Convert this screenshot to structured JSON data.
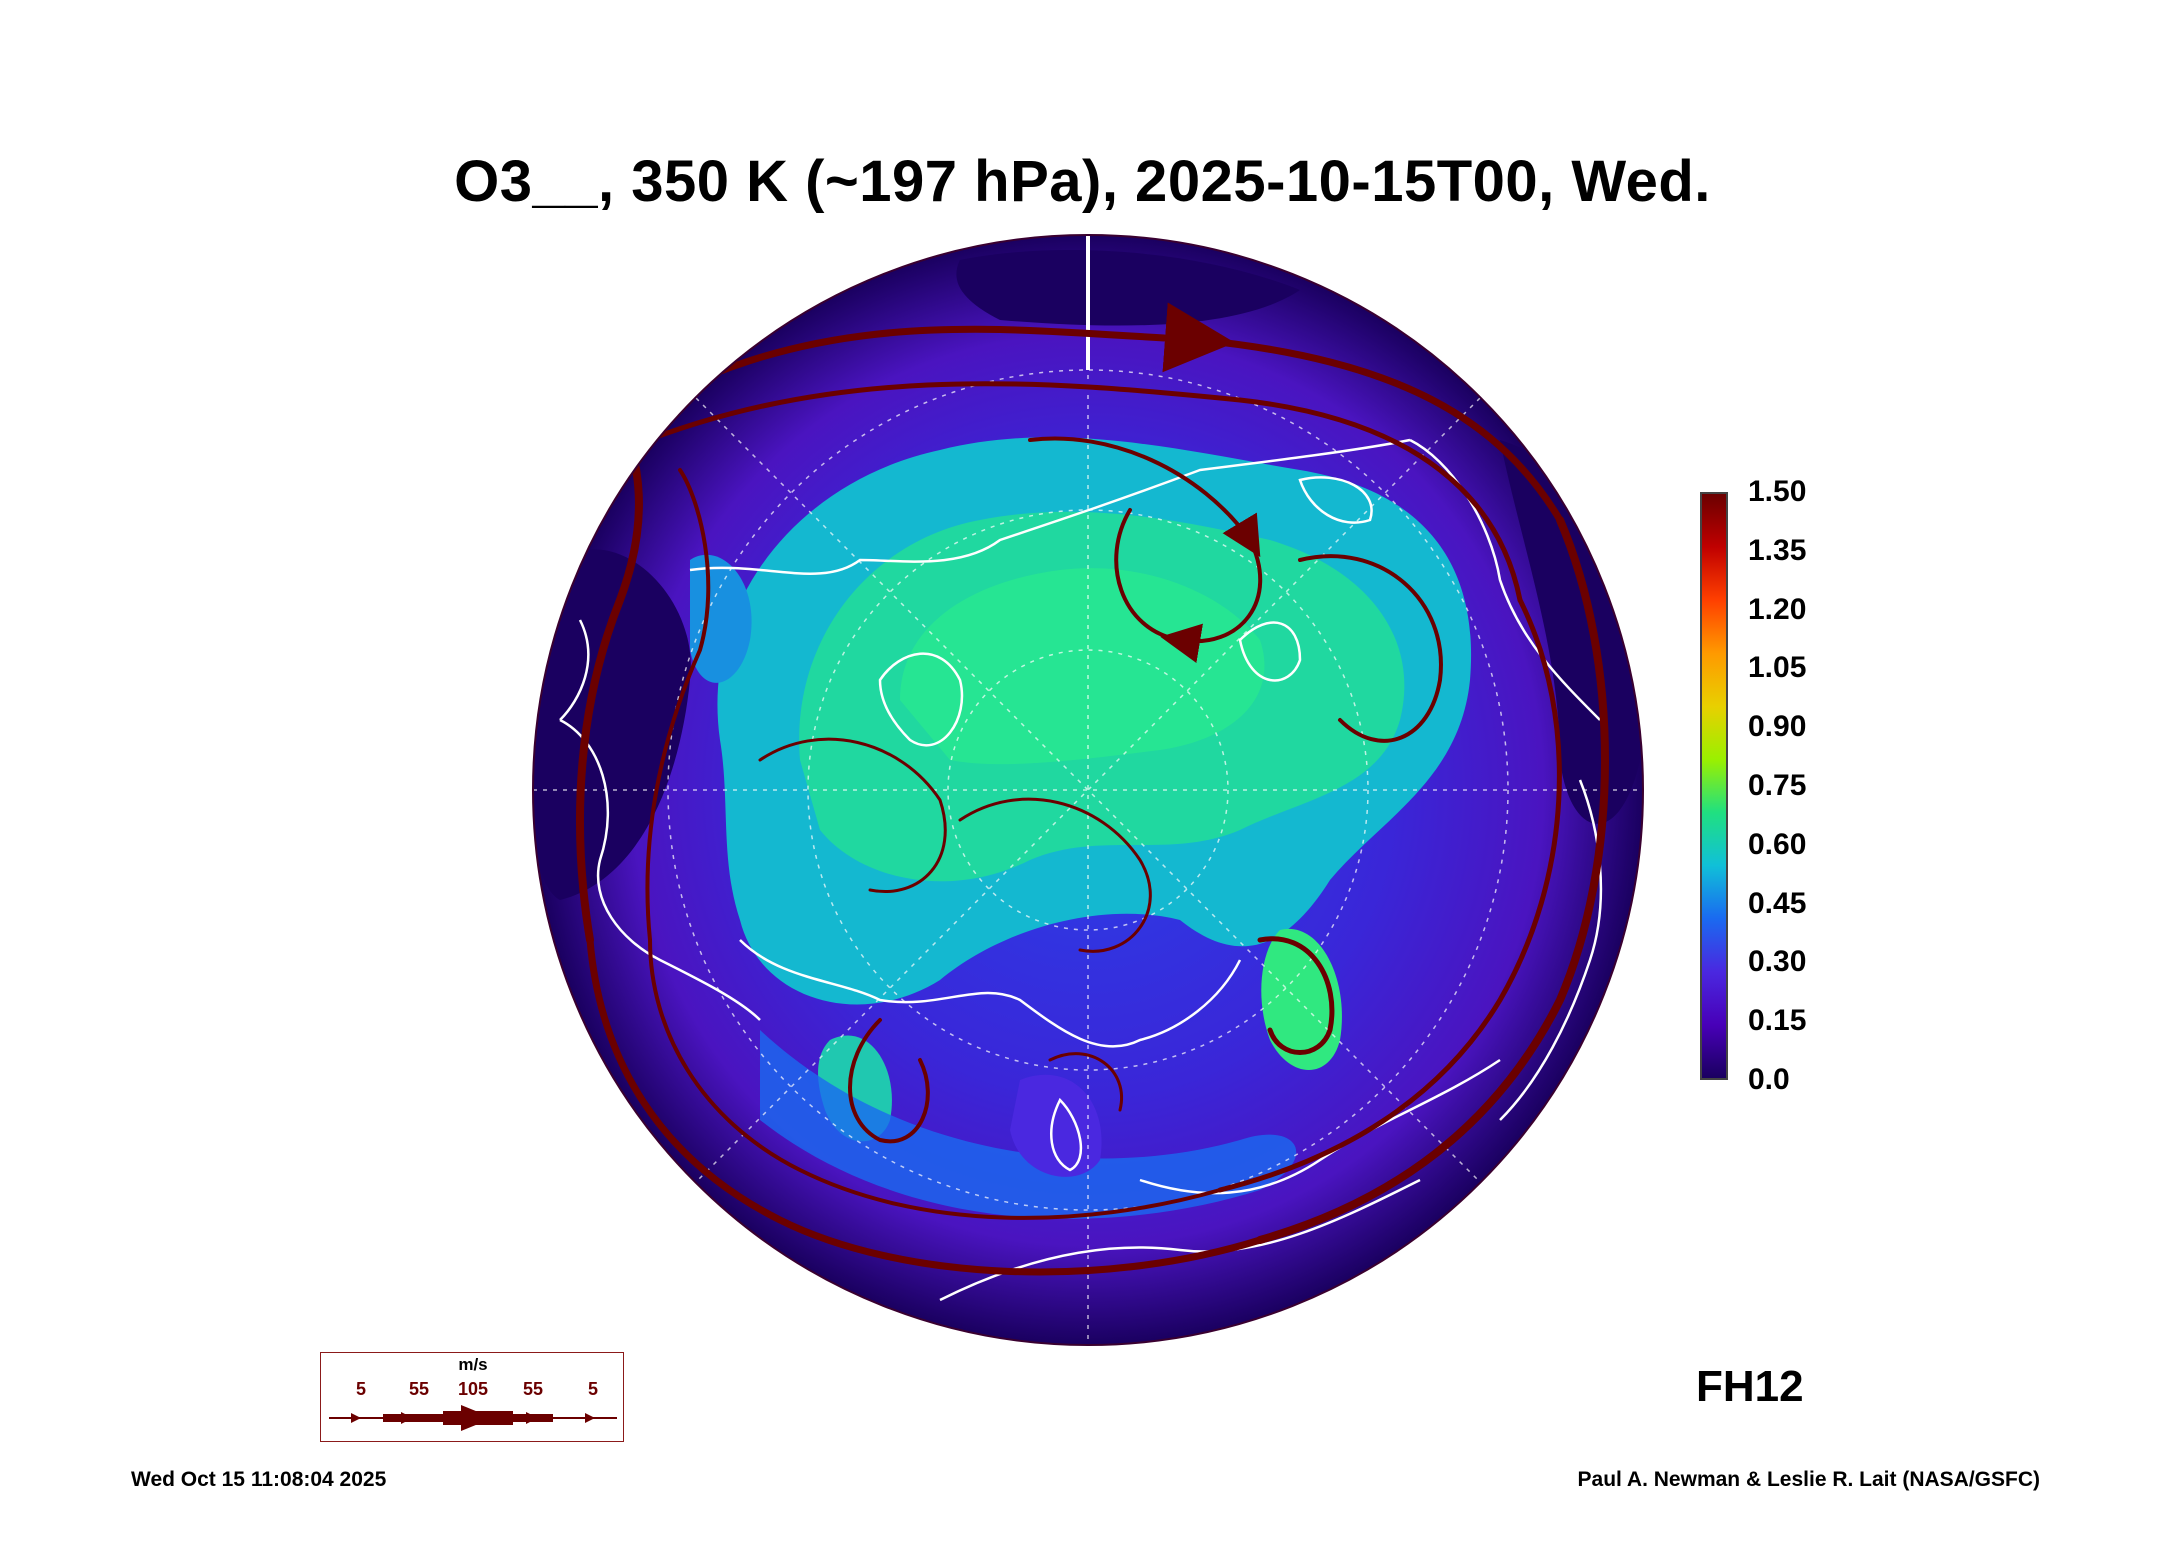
{
  "title": "O3__, 350 K (~197 hPa), 2025-10-15T00, Wed.",
  "forecast_hour": "FH12",
  "colorbar": {
    "labels": [
      "1.50",
      "1.35",
      "1.20",
      "1.05",
      "0.90",
      "0.75",
      "0.60",
      "0.45",
      "0.30",
      "0.15",
      "0.0"
    ],
    "colors": [
      "#6b0000",
      "#c00000",
      "#ff4000",
      "#ff9a00",
      "#e8d000",
      "#9af000",
      "#20e080",
      "#10c0d8",
      "#1a6af0",
      "#4a28e0",
      "#4800b8",
      "#1a0060"
    ]
  },
  "wind_legend": {
    "unit": "m/s",
    "speeds": [
      "5",
      "55",
      "105",
      "55",
      "5"
    ],
    "color": "#6b0000"
  },
  "footer": {
    "timestamp": "Wed Oct 15 11:08:04 2025",
    "credit": "Paul A. Newman & Leslie R. Lait (NASA/GSFC)"
  },
  "map": {
    "projection": "north polar stereographic",
    "field": "ozone",
    "background_color": "#1a0060",
    "coastline_color": "#ffffff",
    "streamline_color": "#6b0000"
  }
}
